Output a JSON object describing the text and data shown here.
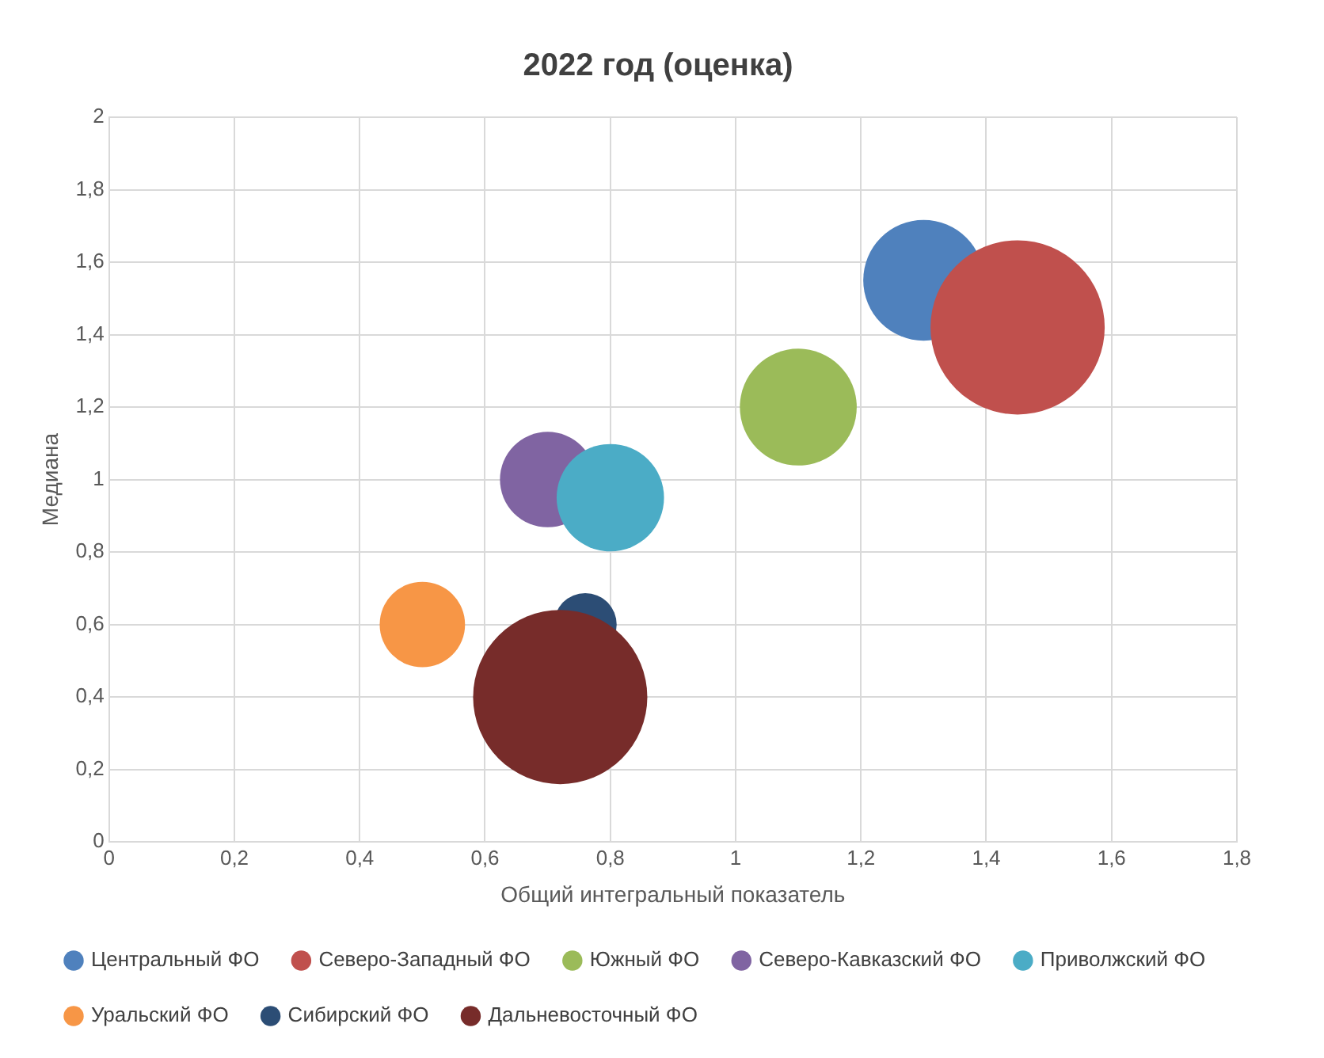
{
  "chart_data": {
    "type": "bubble",
    "title": "2022 год (оценка)",
    "xlabel": "Общий интегральный показатель",
    "ylabel": "Медиана",
    "xlim": [
      0,
      1.8
    ],
    "xticks": [
      0,
      {
        "value": 0.2,
        "label": "0,2"
      },
      {
        "value": 0.4,
        "label": "0,4"
      },
      {
        "value": 0.6,
        "label": "0,6"
      },
      {
        "value": 0.8,
        "label": "0,8"
      },
      1,
      {
        "value": 1.2,
        "label": "1,2"
      },
      {
        "value": 1.4,
        "label": "1,4"
      },
      {
        "value": 1.6,
        "label": "1,6"
      },
      {
        "value": 1.8,
        "label": "1,8"
      }
    ],
    "ylim": [
      0,
      2
    ],
    "yticks": [
      0,
      {
        "value": 0.2,
        "label": "0,2"
      },
      {
        "value": 0.4,
        "label": "0,4"
      },
      {
        "value": 0.6,
        "label": "0,6"
      },
      {
        "value": 0.8,
        "label": "0,8"
      },
      1,
      {
        "value": 1.2,
        "label": "1,2"
      },
      {
        "value": 1.4,
        "label": "1,4"
      },
      {
        "value": 1.6,
        "label": "1,6"
      },
      {
        "value": 1.8,
        "label": "1,8"
      },
      2
    ],
    "grid": true,
    "legend": "bottom",
    "series": [
      {
        "name": "Центральный ФО",
        "color": "#4f81bd",
        "x": [
          1.3
        ],
        "values": [
          1.55
        ],
        "sizes": [
          0.48
        ]
      },
      {
        "name": "Северо-Западный ФО",
        "color": "#c0504d",
        "x": [
          1.45
        ],
        "values": [
          1.42
        ],
        "sizes": [
          1
        ]
      },
      {
        "name": "Южный ФО",
        "color": "#9bbb59",
        "x": [
          1.1
        ],
        "values": [
          1.2
        ],
        "sizes": [
          0.45
        ]
      },
      {
        "name": "Северо-Кавказский ФО",
        "color": "#8064a2",
        "x": [
          0.7
        ],
        "values": [
          1.0
        ],
        "sizes": [
          0.3
        ]
      },
      {
        "name": "Приволжский ФО",
        "color": "#4bacc6",
        "x": [
          0.8
        ],
        "values": [
          0.95
        ],
        "sizes": [
          0.38
        ]
      },
      {
        "name": "Уральский ФО",
        "color": "#f79646",
        "x": [
          0.5
        ],
        "values": [
          0.6
        ],
        "sizes": [
          0.24
        ]
      },
      {
        "name": "Сибирский ФО",
        "color": "#2c4d75",
        "x": [
          0.76
        ],
        "values": [
          0.6
        ],
        "sizes": [
          0.13
        ]
      },
      {
        "name": "Дальневосточный ФО",
        "color": "#772c2a",
        "x": [
          0.72
        ],
        "values": [
          0.4
        ],
        "sizes": [
          1
        ]
      }
    ]
  }
}
